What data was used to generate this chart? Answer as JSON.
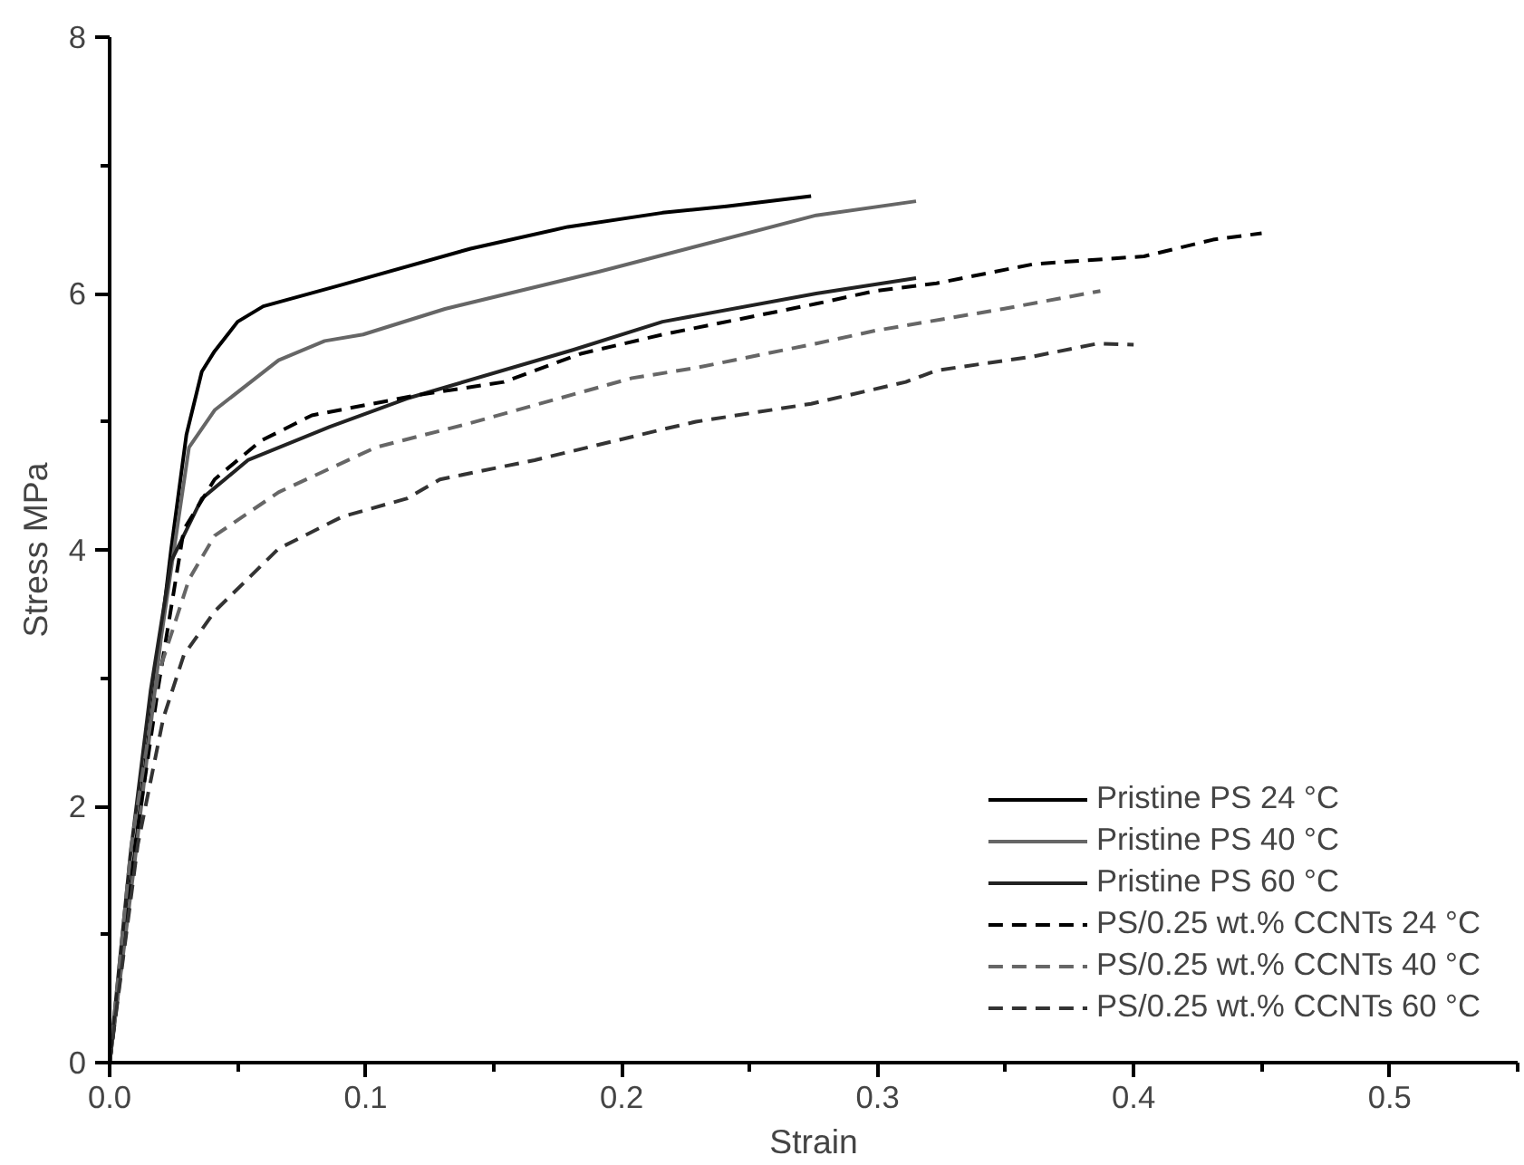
{
  "chart_data": {
    "type": "line",
    "xlabel": "Strain",
    "ylabel": "Stress MPa",
    "xlim": [
      0,
      0.55
    ],
    "ylim": [
      0,
      8
    ],
    "xticks": [
      {
        "value": 0,
        "label": "0.0"
      },
      {
        "value": 0.1,
        "label": "0.1"
      },
      {
        "value": 0.2,
        "label": "0.2"
      },
      {
        "value": 0.3,
        "label": "0.3"
      },
      {
        "value": 0.4,
        "label": "0.4"
      },
      {
        "value": 0.5,
        "label": "0.5"
      }
    ],
    "yticks": [
      0,
      2,
      4,
      6,
      8
    ],
    "grid": false,
    "legend": "bottom right",
    "series": [
      {
        "name": "Pristine PS 24 °C",
        "color": "#000000",
        "line_style": "solid",
        "x": [
          0,
          0.012,
          0.018,
          0.024,
          0.03,
          0.036,
          0.041,
          0.05,
          0.06,
          0.091,
          0.141,
          0.179,
          0.216,
          0.241,
          0.274
        ],
        "values": [
          0,
          2.0,
          3.0,
          4.0,
          4.9,
          5.39,
          5.55,
          5.78,
          5.9,
          6.07,
          6.35,
          6.52,
          6.63,
          6.68,
          6.76
        ]
      },
      {
        "name": "Pristine PS 40 °C",
        "color": "#666666",
        "line_style": "solid",
        "x": [
          0,
          0.01,
          0.02,
          0.031,
          0.041,
          0.066,
          0.084,
          0.099,
          0.131,
          0.191,
          0.276,
          0.315
        ],
        "values": [
          0,
          1.6,
          3.3,
          4.8,
          5.09,
          5.48,
          5.63,
          5.68,
          5.88,
          6.17,
          6.61,
          6.72
        ]
      },
      {
        "name": "Pristine PS 60 °C",
        "color": "#222222",
        "line_style": "solid",
        "x": [
          0,
          0.008,
          0.016,
          0.024,
          0.036,
          0.054,
          0.086,
          0.116,
          0.181,
          0.216,
          0.276,
          0.315
        ],
        "values": [
          0,
          1.6,
          2.9,
          3.91,
          4.4,
          4.7,
          4.96,
          5.18,
          5.56,
          5.78,
          6.0,
          6.12
        ]
      },
      {
        "name": "PS/0.25 wt.% CCNTs 24 °C",
        "color": "#000000",
        "line_style": "dashed",
        "x": [
          0,
          0.01,
          0.019,
          0.029,
          0.041,
          0.059,
          0.079,
          0.121,
          0.154,
          0.184,
          0.216,
          0.276,
          0.299,
          0.323,
          0.361,
          0.404,
          0.431,
          0.45
        ],
        "values": [
          0,
          1.7,
          2.93,
          4.16,
          4.55,
          4.85,
          5.05,
          5.21,
          5.31,
          5.53,
          5.68,
          5.92,
          6.02,
          6.08,
          6.23,
          6.29,
          6.42,
          6.47
        ]
      },
      {
        "name": "PS/0.25 wt.% CCNTs 40 °C",
        "color": "#666666",
        "line_style": "dashed",
        "x": [
          0,
          0.0085,
          0.019,
          0.031,
          0.041,
          0.066,
          0.104,
          0.141,
          0.204,
          0.229,
          0.276,
          0.299,
          0.349,
          0.387
        ],
        "values": [
          0,
          1.7,
          3.03,
          3.77,
          4.11,
          4.45,
          4.8,
          4.99,
          5.34,
          5.42,
          5.61,
          5.71,
          5.88,
          6.02
        ]
      },
      {
        "name": "PS/0.25 wt.% CCNTs 60 °C",
        "color": "#333333",
        "line_style": "dashed",
        "x": [
          0,
          0.011,
          0.021,
          0.029,
          0.041,
          0.066,
          0.091,
          0.116,
          0.129,
          0.166,
          0.216,
          0.229,
          0.274,
          0.311,
          0.323,
          0.361,
          0.386,
          0.4
        ],
        "values": [
          0,
          1.7,
          2.69,
          3.18,
          3.52,
          4.01,
          4.26,
          4.4,
          4.55,
          4.7,
          4.94,
          5.0,
          5.14,
          5.31,
          5.4,
          5.51,
          5.61,
          5.6
        ]
      }
    ]
  }
}
